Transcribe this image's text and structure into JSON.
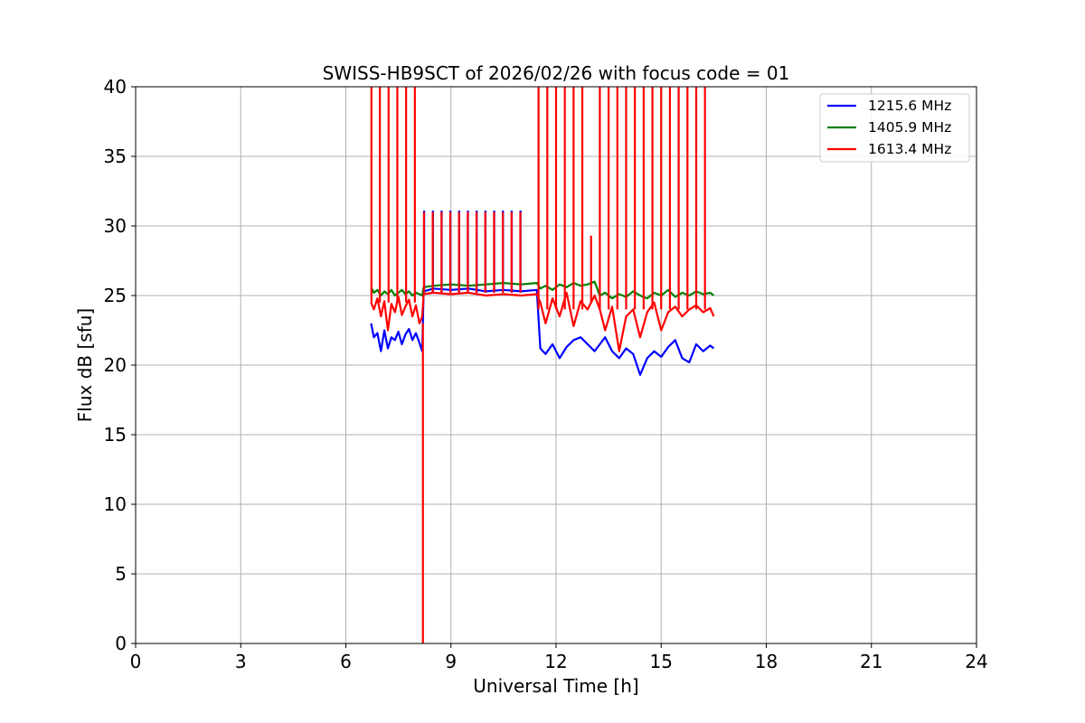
{
  "chart_data": {
    "type": "line",
    "title": "SWISS-HB9SCT of 2026/02/26 with focus code = 01",
    "xlabel": "Universal Time [h]",
    "ylabel": "Flux dB [sfu]",
    "xlim": [
      0,
      24
    ],
    "ylim": [
      0,
      40
    ],
    "xticks": [
      0,
      3,
      6,
      9,
      12,
      15,
      18,
      21,
      24
    ],
    "yticks": [
      0,
      5,
      10,
      15,
      20,
      25,
      30,
      35,
      40
    ],
    "grid": true,
    "legend_position": "top-right",
    "series": [
      {
        "name": "1215.6 MHz",
        "color": "#0000ff",
        "x": [
          6.72,
          6.8,
          6.9,
          7.0,
          7.1,
          7.2,
          7.3,
          7.4,
          7.5,
          7.6,
          7.7,
          7.8,
          7.9,
          8.0,
          8.1,
          8.18,
          8.22,
          8.5,
          9.0,
          9.5,
          10.0,
          10.5,
          11.0,
          11.45,
          11.55,
          11.7,
          11.9,
          12.1,
          12.3,
          12.5,
          12.7,
          12.9,
          13.1,
          13.25,
          13.4,
          13.6,
          13.8,
          14.0,
          14.2,
          14.4,
          14.6,
          14.8,
          15.0,
          15.2,
          15.4,
          15.6,
          15.8,
          16.0,
          16.2,
          16.4,
          16.5
        ],
        "y": [
          23.0,
          22.0,
          22.3,
          21.0,
          22.5,
          21.2,
          22.0,
          21.8,
          22.4,
          21.5,
          22.2,
          22.6,
          21.8,
          22.3,
          21.6,
          21.0,
          25.3,
          25.5,
          25.4,
          25.5,
          25.3,
          25.4,
          25.3,
          25.4,
          21.2,
          20.8,
          21.5,
          20.5,
          21.3,
          21.8,
          22.0,
          21.5,
          21.0,
          21.5,
          22.0,
          21.0,
          20.5,
          21.2,
          20.8,
          19.3,
          20.5,
          21.0,
          20.6,
          21.3,
          21.8,
          20.5,
          20.2,
          21.5,
          21.0,
          21.4,
          21.2
        ]
      },
      {
        "name": "1405.9 MHz",
        "color": "#008000",
        "x": [
          6.72,
          6.8,
          6.9,
          7.0,
          7.1,
          7.2,
          7.3,
          7.4,
          7.5,
          7.6,
          7.7,
          7.8,
          7.9,
          8.0,
          8.1,
          8.18,
          8.22,
          8.5,
          9.0,
          9.5,
          10.0,
          10.5,
          11.0,
          11.45,
          11.55,
          11.7,
          11.9,
          12.1,
          12.3,
          12.5,
          12.7,
          12.9,
          13.1,
          13.25,
          13.4,
          13.6,
          13.8,
          14.0,
          14.2,
          14.4,
          14.6,
          14.8,
          15.0,
          15.2,
          15.4,
          15.6,
          15.8,
          16.0,
          16.2,
          16.4,
          16.5
        ],
        "y": [
          25.6,
          25.2,
          25.4,
          25.0,
          25.3,
          25.1,
          25.4,
          25.0,
          25.2,
          25.4,
          25.1,
          25.3,
          25.0,
          25.2,
          25.1,
          25.0,
          25.6,
          25.7,
          25.8,
          25.7,
          25.8,
          25.9,
          25.8,
          25.9,
          25.5,
          25.7,
          25.4,
          25.8,
          25.6,
          25.9,
          25.7,
          25.8,
          26.0,
          25.0,
          25.2,
          24.8,
          25.1,
          24.9,
          25.3,
          25.0,
          24.8,
          25.2,
          25.0,
          25.4,
          24.9,
          25.2,
          25.0,
          25.3,
          25.1,
          25.2,
          25.0
        ]
      },
      {
        "name": "1613.4 MHz",
        "color": "#ff0000",
        "x": [
          6.72,
          6.8,
          6.9,
          7.0,
          7.1,
          7.2,
          7.3,
          7.4,
          7.5,
          7.6,
          7.7,
          7.8,
          7.9,
          8.0,
          8.1,
          8.18,
          8.22,
          8.5,
          9.0,
          9.5,
          10.0,
          10.5,
          11.0,
          11.45,
          11.55,
          11.7,
          11.9,
          12.1,
          12.3,
          12.5,
          12.7,
          12.9,
          13.1,
          13.25,
          13.4,
          13.6,
          13.8,
          14.0,
          14.2,
          14.4,
          14.6,
          14.8,
          15.0,
          15.2,
          15.4,
          15.6,
          15.8,
          16.0,
          16.2,
          16.4,
          16.5
        ],
        "y": [
          24.5,
          24.0,
          24.8,
          23.5,
          24.6,
          22.5,
          24.4,
          23.8,
          24.9,
          23.6,
          24.2,
          24.7,
          23.5,
          24.3,
          23.0,
          23.5,
          25.1,
          25.2,
          25.1,
          25.2,
          25.0,
          25.1,
          25.0,
          25.1,
          24.5,
          23.0,
          24.8,
          23.5,
          25.2,
          22.8,
          24.6,
          24.0,
          25.0,
          24.0,
          22.5,
          24.2,
          21.0,
          23.5,
          24.0,
          22.0,
          23.8,
          24.5,
          22.5,
          23.8,
          24.2,
          23.5,
          24.0,
          24.3,
          23.8,
          24.1,
          23.5
        ]
      }
    ],
    "spikes": {
      "times_morning": [
        6.73,
        6.97,
        7.22,
        7.47,
        7.72,
        7.97
      ],
      "times_plateau": [
        8.23,
        8.48,
        8.73,
        8.98,
        9.23,
        9.48,
        9.73,
        9.98,
        10.23,
        10.48,
        10.73,
        10.98
      ],
      "plateau_peak": 31.0,
      "times_afternoon": [
        11.5,
        11.75,
        12.0,
        12.25,
        12.5,
        12.75,
        13.25,
        13.5,
        13.75,
        14.0,
        14.25,
        14.5,
        14.75,
        15.0,
        15.25,
        15.5,
        15.75,
        16.0,
        16.25
      ],
      "small_spike": {
        "x": 13.0,
        "y": 29.3
      },
      "dropout": {
        "x": 8.2,
        "y": 0.0
      }
    }
  }
}
